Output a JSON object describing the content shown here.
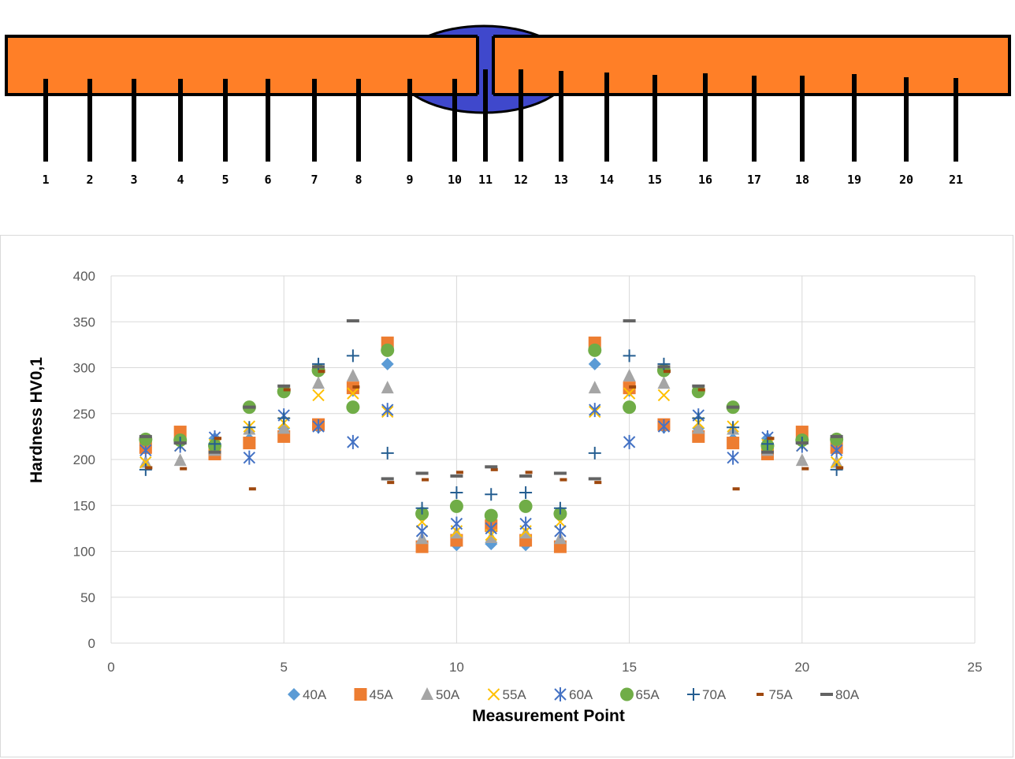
{
  "diagram": {
    "point_labels": [
      "1",
      "2",
      "3",
      "4",
      "5",
      "6",
      "7",
      "8",
      "9",
      "10",
      "11",
      "12",
      "13",
      "14",
      "15",
      "16",
      "17",
      "18",
      "19",
      "20",
      "21"
    ],
    "plate_color": "#ff7f27",
    "weld_color": "#3f48cc"
  },
  "chart_data": {
    "type": "scatter",
    "xlabel": "Measurement Point",
    "ylabel": "Hardness HV0,1",
    "xlim": [
      0,
      25
    ],
    "ylim": [
      0,
      400
    ],
    "xticks": [
      0,
      5,
      10,
      15,
      20,
      25
    ],
    "yticks": [
      0,
      50,
      100,
      150,
      200,
      250,
      300,
      350,
      400
    ],
    "grid": "horizontal and vertical major gridlines",
    "legend_position": "bottom",
    "x": [
      1,
      2,
      3,
      4,
      5,
      6,
      7,
      8,
      9,
      10,
      11,
      12,
      13,
      14,
      15,
      16,
      17,
      18,
      19,
      20,
      21
    ],
    "series": [
      {
        "name": "40A",
        "marker": "diamond",
        "color": "#5b9bd5",
        "values": [
          213,
          222,
          223,
          222,
          234,
          235,
          275,
          304,
          110,
          107,
          108,
          107,
          110,
          304,
          275,
          235,
          234,
          222,
          223,
          222,
          213
        ]
      },
      {
        "name": "45A",
        "marker": "square",
        "color": "#ed7d31",
        "values": [
          213,
          230,
          206,
          218,
          225,
          238,
          278,
          327,
          105,
          112,
          128,
          112,
          105,
          327,
          278,
          238,
          225,
          218,
          206,
          230,
          213
        ]
      },
      {
        "name": "50A",
        "marker": "triangle",
        "color": "#a5a5a5",
        "values": [
          197,
          199,
          210,
          233,
          234,
          283,
          291,
          278,
          114,
          120,
          115,
          120,
          114,
          278,
          291,
          283,
          234,
          233,
          210,
          199,
          197
        ]
      },
      {
        "name": "55A",
        "marker": "x",
        "color": "#ffc000",
        "values": [
          197,
          215,
          216,
          236,
          240,
          270,
          272,
          252,
          132,
          122,
          118,
          122,
          132,
          252,
          272,
          270,
          240,
          236,
          216,
          215,
          197
        ]
      },
      {
        "name": "60A",
        "marker": "star",
        "color": "#4472c4",
        "values": [
          210,
          215,
          224,
          202,
          248,
          236,
          219,
          254,
          122,
          130,
          125,
          130,
          122,
          254,
          219,
          236,
          248,
          202,
          224,
          215,
          210
        ]
      },
      {
        "name": "65A",
        "marker": "circle",
        "color": "#70ad47",
        "values": [
          222,
          221,
          215,
          257,
          274,
          297,
          257,
          319,
          141,
          149,
          139,
          149,
          141,
          319,
          257,
          297,
          274,
          257,
          215,
          221,
          222
        ]
      },
      {
        "name": "70A",
        "marker": "plus",
        "color": "#255e91",
        "values": [
          189,
          218,
          217,
          235,
          245,
          304,
          313,
          207,
          147,
          164,
          162,
          164,
          147,
          207,
          313,
          304,
          245,
          235,
          217,
          218,
          189
        ]
      },
      {
        "name": "75A",
        "marker": "dash",
        "color": "#9e480e",
        "values": [
          191,
          190,
          223,
          168,
          276,
          296,
          279,
          175,
          178,
          186,
          189,
          186,
          178,
          175,
          279,
          296,
          276,
          168,
          223,
          190,
          191
        ]
      },
      {
        "name": "80A",
        "marker": "dash",
        "color": "#636363",
        "values": [
          225,
          218,
          208,
          257,
          280,
          301,
          351,
          179,
          185,
          182,
          192,
          182,
          185,
          179,
          351,
          301,
          280,
          257,
          208,
          218,
          225
        ]
      }
    ]
  }
}
